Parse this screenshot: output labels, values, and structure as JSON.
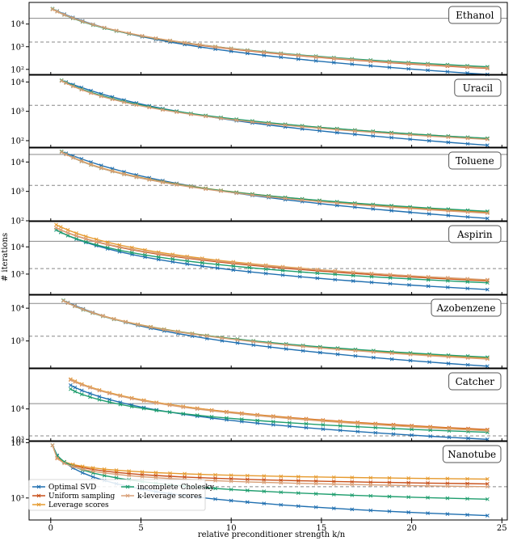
{
  "chart_data": {
    "type": "line",
    "xlabel": "relative preconditioner strength k/n",
    "ylabel": "# iterations",
    "x_ticks": [
      0,
      5,
      10,
      15,
      20,
      25
    ],
    "xlim": [
      -1.2,
      25.3
    ],
    "yscale": "log",
    "series_styles": [
      {
        "name": "Optimal SVD",
        "color": "#1f6fb0"
      },
      {
        "name": "Uniform sampling",
        "color": "#c8501a"
      },
      {
        "name": "Leverage scores",
        "color": "#e69a2e"
      },
      {
        "name": "incomplete Cholesky",
        "color": "#1f9e6e"
      },
      {
        "name": "k-leverage scores",
        "color": "#d9a078"
      }
    ],
    "legend": {
      "placement": "lower-left (last panel)",
      "entries": [
        {
          "label": "Optimal SVD",
          "color": "#1f6fb0"
        },
        {
          "label": "Uniform sampling",
          "color": "#c8501a"
        },
        {
          "label": "Leverage scores",
          "color": "#e69a2e"
        },
        {
          "label": "incomplete Cholesky",
          "color": "#1f9e6e"
        },
        {
          "label": "k-leverage scores",
          "color": "#d9a078"
        }
      ]
    },
    "panels": [
      {
        "name": "Ethanol",
        "ylim": [
          60,
          90000
        ],
        "y_ticks": [
          {
            "v": 100,
            "label": "10²"
          },
          {
            "v": 1000,
            "label": "10³"
          },
          {
            "v": 10000,
            "label": "10⁴"
          }
        ],
        "hline_solid": 18000,
        "hline_dashed": 1600,
        "x_start": 0.1,
        "x_end": 24.2,
        "series": [
          {
            "name": "Optimal SVD",
            "y_start": 45000,
            "y_end": 60,
            "k": 1.1
          },
          {
            "name": "Uniform sampling",
            "y_start": 45000,
            "y_end": 110,
            "k": 1.0
          },
          {
            "name": "Leverage scores",
            "y_start": 45000,
            "y_end": 120,
            "k": 1.0
          },
          {
            "name": "incomplete Cholesky",
            "y_start": 48000,
            "y_end": 130,
            "k": 0.95
          },
          {
            "name": "k-leverage scores",
            "y_start": 46000,
            "y_end": 115,
            "k": 1.0
          }
        ]
      },
      {
        "name": "Uracil",
        "ylim": [
          60,
          17000
        ],
        "y_ticks": [
          {
            "v": 100,
            "label": "10²"
          },
          {
            "v": 1000,
            "label": "10³"
          },
          {
            "v": 10000,
            "label": "10⁴"
          }
        ],
        "hline_solid": null,
        "hline_dashed": 1600,
        "x_start": 0.6,
        "x_end": 24.2,
        "series": [
          {
            "name": "Optimal SVD",
            "y_start": 11000,
            "y_end": 70,
            "k": 1.2
          },
          {
            "name": "Uniform sampling",
            "y_start": 11000,
            "y_end": 115,
            "k": 1.0
          },
          {
            "name": "Leverage scores",
            "y_start": 11000,
            "y_end": 120,
            "k": 1.0
          },
          {
            "name": "incomplete Cholesky",
            "y_start": 11500,
            "y_end": 120,
            "k": 1.0
          },
          {
            "name": "k-leverage scores",
            "y_start": 11000,
            "y_end": 110,
            "k": 1.0
          }
        ]
      },
      {
        "name": "Toluene",
        "ylim": [
          100,
          30000
        ],
        "y_ticks": [
          {
            "v": 100,
            "label": "10²"
          },
          {
            "v": 1000,
            "label": "10³"
          },
          {
            "v": 10000,
            "label": "10⁴"
          }
        ],
        "hline_solid": 18000,
        "hline_dashed": 1600,
        "x_start": 0.6,
        "x_end": 24.2,
        "series": [
          {
            "name": "Optimal SVD",
            "y_start": 22000,
            "y_end": 120,
            "k": 1.2
          },
          {
            "name": "Uniform sampling",
            "y_start": 22000,
            "y_end": 190,
            "k": 1.0
          },
          {
            "name": "Leverage scores",
            "y_start": 22000,
            "y_end": 200,
            "k": 1.0
          },
          {
            "name": "incomplete Cholesky",
            "y_start": 23000,
            "y_end": 210,
            "k": 0.95
          },
          {
            "name": "k-leverage scores",
            "y_start": 22000,
            "y_end": 180,
            "k": 1.0
          }
        ]
      },
      {
        "name": "Aspirin",
        "ylim": [
          180,
          85000
        ],
        "y_ticks": [
          {
            "v": 1000,
            "label": "10³"
          },
          {
            "v": 10000,
            "label": "10⁴"
          }
        ],
        "hline_solid": 16000,
        "hline_dashed": 1600,
        "x_start": 0.3,
        "x_end": 24.2,
        "series": [
          {
            "name": "Optimal SVD",
            "y_start": 42000,
            "y_end": 270,
            "k": 1.0
          },
          {
            "name": "Uniform sampling",
            "y_start": 50000,
            "y_end": 560,
            "k": 1.0
          },
          {
            "name": "Leverage scores",
            "y_start": 65000,
            "y_end": 600,
            "k": 1.0
          },
          {
            "name": "incomplete Cholesky",
            "y_start": 42000,
            "y_end": 480,
            "k": 0.95
          },
          {
            "name": "k-leverage scores",
            "y_start": 50000,
            "y_end": 620,
            "k": 1.0
          }
        ]
      },
      {
        "name": "Azobenzene",
        "ylim": [
          150,
          25000
        ],
        "y_ticks": [
          {
            "v": 1000,
            "label": "10³"
          },
          {
            "v": 10000,
            "label": "10⁴"
          }
        ],
        "hline_solid": 14000,
        "hline_dashed": 1400,
        "x_start": 0.7,
        "x_end": 24.2,
        "series": [
          {
            "name": "Optimal SVD",
            "y_start": 17000,
            "y_end": 170,
            "k": 1.1
          },
          {
            "name": "Uniform sampling",
            "y_start": 17000,
            "y_end": 290,
            "k": 1.0
          },
          {
            "name": "Leverage scores",
            "y_start": 17000,
            "y_end": 300,
            "k": 1.0
          },
          {
            "name": "incomplete Cholesky",
            "y_start": 17500,
            "y_end": 320,
            "k": 0.95
          },
          {
            "name": "k-leverage scores",
            "y_start": 17000,
            "y_end": 280,
            "k": 1.0
          }
        ]
      },
      {
        "name": "Catcher",
        "ylim": [
          900,
          210000
        ],
        "y_ticks": [
          {
            "v": 1000,
            "label": "10³"
          },
          {
            "v": 10000,
            "label": "10⁴"
          }
        ],
        "hline_solid": 15000,
        "hline_dashed": 1300,
        "x_start": 1.1,
        "x_end": 24.2,
        "series": [
          {
            "name": "Optimal SVD",
            "y_start": 60000,
            "y_end": 1000,
            "k": 1.0
          },
          {
            "name": "Uniform sampling",
            "y_start": 90000,
            "y_end": 2100,
            "k": 1.0
          },
          {
            "name": "Leverage scores",
            "y_start": 95000,
            "y_end": 2000,
            "k": 1.0
          },
          {
            "name": "incomplete Cholesky",
            "y_start": 45000,
            "y_end": 1700,
            "k": 0.9
          },
          {
            "name": "k-leverage scores",
            "y_start": 90000,
            "y_end": 1900,
            "k": 1.0
          }
        ]
      },
      {
        "name": "Nanotube",
        "ylim": [
          400,
          10500
        ],
        "y_ticks": [
          {
            "v": 1000,
            "label": "10³"
          },
          {
            "v": 10000,
            "label": "10⁴"
          }
        ],
        "hline_solid": null,
        "hline_dashed": 1600,
        "x_start": 0.1,
        "x_end": 24.2,
        "series": [
          {
            "name": "Optimal SVD",
            "y_start": 9000,
            "y_end": 480,
            "k": 0.6
          },
          {
            "name": "Uniform sampling",
            "y_start": 9000,
            "y_end": 1800,
            "k": 0.35
          },
          {
            "name": "Leverage scores",
            "y_start": 9000,
            "y_end": 2200,
            "k": 0.3
          },
          {
            "name": "incomplete Cholesky",
            "y_start": 9000,
            "y_end": 950,
            "k": 0.5
          },
          {
            "name": "k-leverage scores",
            "y_start": 9000,
            "y_end": 1600,
            "k": 0.35
          }
        ]
      }
    ]
  }
}
